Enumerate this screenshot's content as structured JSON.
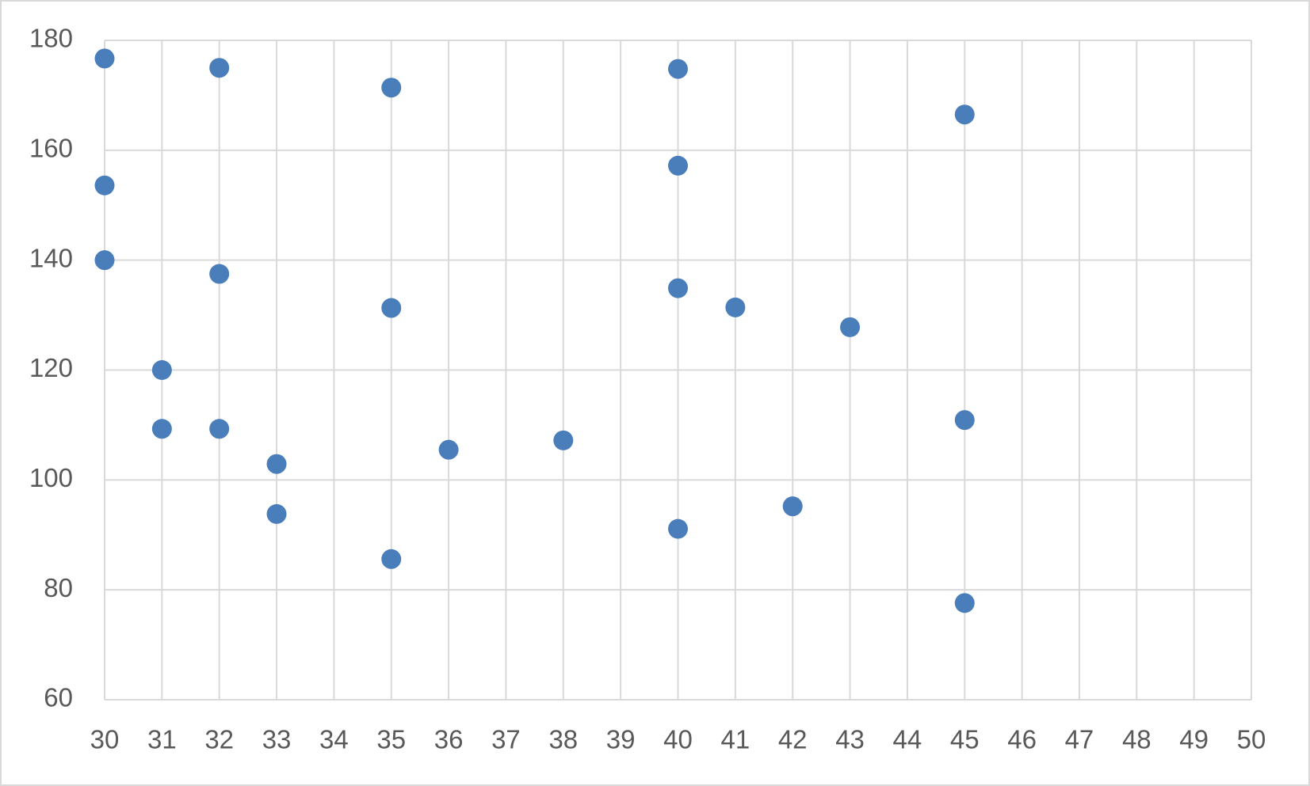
{
  "chart_data": {
    "type": "scatter",
    "x": [
      30,
      30,
      30,
      31,
      31,
      32,
      32,
      32,
      33,
      33,
      35,
      35,
      35,
      36,
      38,
      40,
      40,
      40,
      40,
      41,
      42,
      43,
      45,
      45,
      45
    ],
    "values": [
      176.7,
      153.6,
      140,
      120,
      109.3,
      175,
      137.5,
      109.3,
      102.9,
      93.8,
      171.4,
      131.3,
      85.6,
      105.5,
      107.2,
      174.8,
      157.2,
      134.9,
      91.1,
      131.4,
      95.2,
      127.8,
      166.5,
      110.9,
      77.6
    ],
    "color": "#4a7ebb",
    "xlim": [
      30,
      50
    ],
    "xticks": [
      30,
      31,
      32,
      33,
      34,
      35,
      36,
      37,
      38,
      39,
      40,
      41,
      42,
      43,
      44,
      45,
      46,
      47,
      48,
      49,
      50
    ],
    "ylim": [
      60,
      180
    ],
    "yticks": [
      60,
      80,
      100,
      120,
      140,
      160,
      180
    ],
    "grid": true
  }
}
